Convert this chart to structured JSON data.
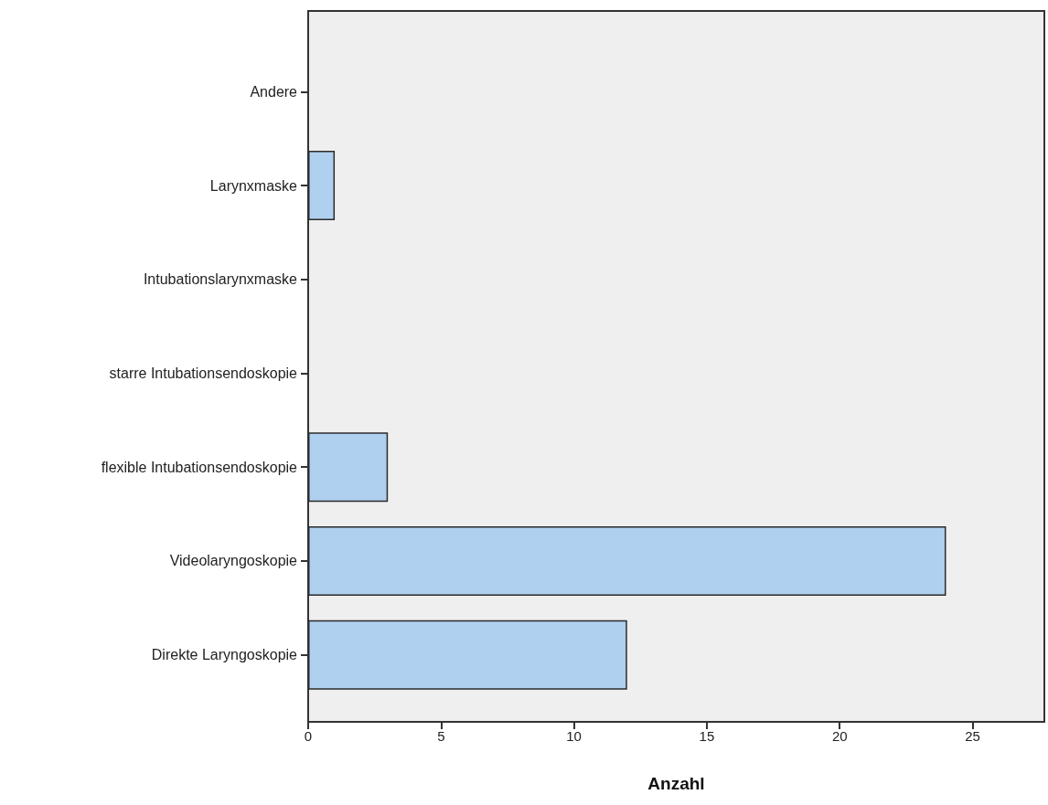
{
  "chart_data": {
    "type": "bar",
    "orientation": "horizontal",
    "categories": [
      "Andere",
      "Larynxmaske",
      "Intubationslarynxmaske",
      "starre Intubationsendoskopie",
      "flexible Intubationsendoskopie",
      "Videolaryngoskopie",
      "Direkte Laryngoskopie"
    ],
    "values": [
      0,
      1,
      0,
      0,
      3,
      24,
      12
    ],
    "color": "#b0d0ef",
    "xlabel": "Anzahl",
    "xlim": [
      0,
      27.7
    ],
    "xticks": [
      0,
      5,
      10,
      15,
      20,
      25
    ],
    "grid": false
  }
}
